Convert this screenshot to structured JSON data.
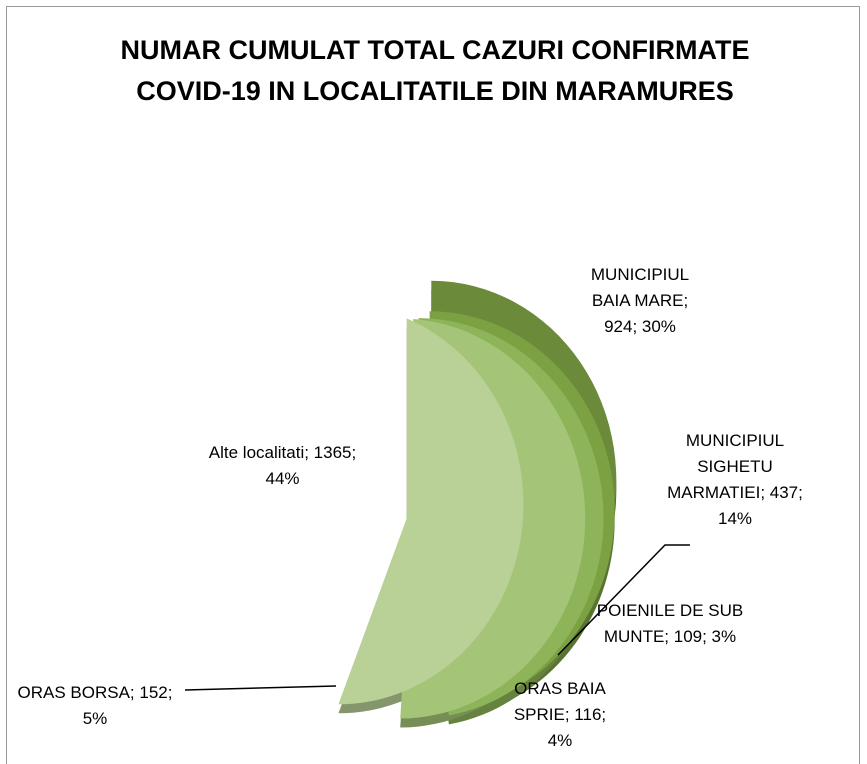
{
  "chart_data": {
    "type": "pie",
    "title": "NUMAR CUMULAT TOTAL CAZURI CONFIRMATE COVID-19 IN LOCALITATILE DIN MARAMURES",
    "values": [
      924,
      437,
      109,
      116,
      152,
      1365
    ],
    "value_labels": [
      "MUNICIPIUL BAIA MARE; 924; 30%",
      "MUNICIPIUL SIGHETU MARMATIEI; 437; 14%",
      "POIENILE DE SUB MUNTE; 109; 3%",
      "ORAS BAIA SPRIE; 116; 4%",
      "ORAS BORSA; 152; 5%",
      "Alte localitati; 1365; 44%"
    ],
    "colors": [
      "#6b8a3a",
      "#7ba142",
      "#8db458",
      "#a4c477",
      "#b9d096",
      "#d4dfbd"
    ]
  }
}
